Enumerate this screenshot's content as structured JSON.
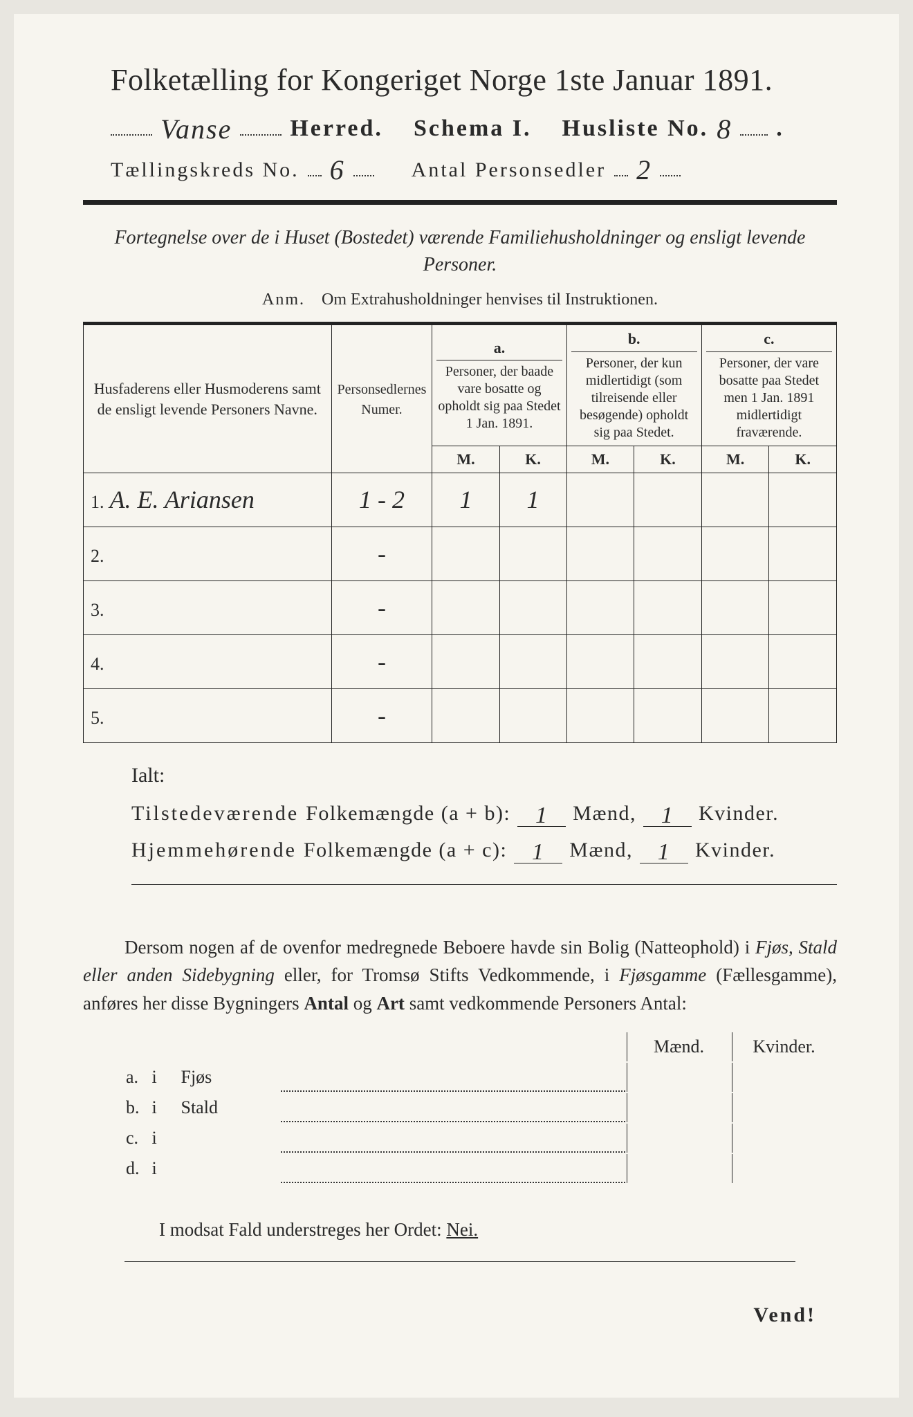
{
  "title": "Folketælling for Kongeriget Norge 1ste Januar 1891.",
  "header": {
    "herred_value": "Vanse",
    "herred_label": "Herred.",
    "schema_label": "Schema I.",
    "husliste_label": "Husliste No.",
    "husliste_value": "8",
    "kreds_label": "Tællingskreds No.",
    "kreds_value": "6",
    "antal_label": "Antal Personsedler",
    "antal_value": "2"
  },
  "subtitle": "Fortegnelse over de i Huset (Bostedet) værende Familiehusholdninger og ensligt levende Personer.",
  "anm_label": "Anm.",
  "anm_text": "Om Extrahusholdninger henvises til Instruktionen.",
  "columns": {
    "names": "Husfaderens eller Husmoderens samt de ensligt levende Personers Navne.",
    "numer": "Personsedlernes Numer.",
    "a_label": "a.",
    "a_text": "Personer, der baade vare bosatte og opholdt sig paa Stedet 1 Jan. 1891.",
    "b_label": "b.",
    "b_text": "Personer, der kun midlertidigt (som tilreisende eller besøgende) opholdt sig paa Stedet.",
    "c_label": "c.",
    "c_text": "Personer, der vare bosatte paa Stedet men 1 Jan. 1891 midlertidigt fraværende.",
    "m": "M.",
    "k": "K."
  },
  "rows": [
    {
      "n": "1.",
      "name": "A. E. Ariansen",
      "num": "1 - 2",
      "a_m": "1",
      "a_k": "1",
      "b_m": "",
      "b_k": "",
      "c_m": "",
      "c_k": ""
    },
    {
      "n": "2.",
      "name": "",
      "num": "-",
      "a_m": "",
      "a_k": "",
      "b_m": "",
      "b_k": "",
      "c_m": "",
      "c_k": ""
    },
    {
      "n": "3.",
      "name": "",
      "num": "-",
      "a_m": "",
      "a_k": "",
      "b_m": "",
      "b_k": "",
      "c_m": "",
      "c_k": ""
    },
    {
      "n": "4.",
      "name": "",
      "num": "-",
      "a_m": "",
      "a_k": "",
      "b_m": "",
      "b_k": "",
      "c_m": "",
      "c_k": ""
    },
    {
      "n": "5.",
      "name": "",
      "num": "-",
      "a_m": "",
      "a_k": "",
      "b_m": "",
      "b_k": "",
      "c_m": "",
      "c_k": ""
    }
  ],
  "ialt": "Ialt:",
  "sum1": {
    "lead": "Tilstedeværende",
    "rest": "Folkemængde (a + b):",
    "m": "1",
    "k": "1",
    "m_label": "Mænd,",
    "k_label": "Kvinder."
  },
  "sum2": {
    "lead": "Hjemmehørende",
    "rest": "Folkemængde (a + c):",
    "m": "1",
    "k": "1",
    "m_label": "Mænd,",
    "k_label": "Kvinder."
  },
  "para": {
    "t1": "Dersom nogen af de ovenfor medregnede Beboere havde sin Bolig (Natteophold) i ",
    "t2": "Fjøs, Stald eller anden Sidebygning",
    "t3": " eller, for Tromsø Stifts Vedkommende, i ",
    "t4": "Fjøsgamme",
    "t5": " (Fællesgamme), anføres her disse Bygningers ",
    "t6": "Antal",
    "t7": " og ",
    "t8": "Art",
    "t9": " samt vedkommende Personers Antal:"
  },
  "bt": {
    "maend": "Mænd.",
    "kvinder": "Kvinder.",
    "rows": [
      {
        "l": "a.",
        "i": "i",
        "k": "Fjøs"
      },
      {
        "l": "b.",
        "i": "i",
        "k": "Stald"
      },
      {
        "l": "c.",
        "i": "i",
        "k": ""
      },
      {
        "l": "d.",
        "i": "i",
        "k": ""
      }
    ]
  },
  "modsat": {
    "t1": "I modsat Fald understreges her Ordet: ",
    "nei": "Nei."
  },
  "vend": "Vend!"
}
